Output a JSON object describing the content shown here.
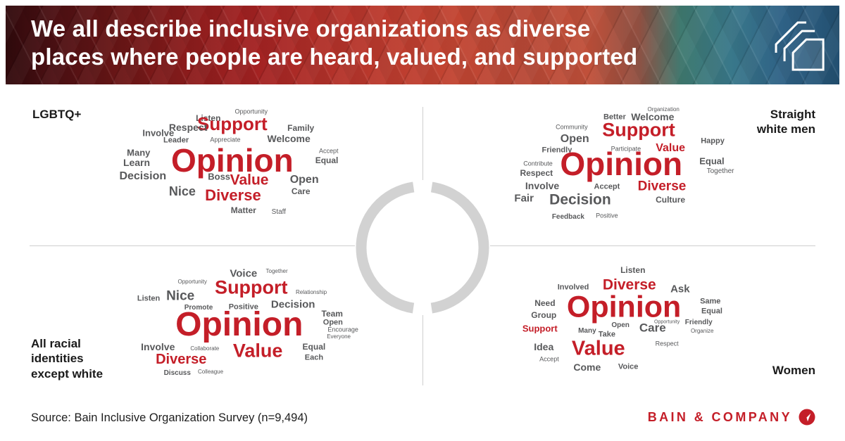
{
  "header": {
    "title_line1": "We all describe inclusive organizations as diverse",
    "title_line2": "places where people are heard, valued, and supported"
  },
  "footer": {
    "source": "Source: Bain Inclusive Organization Survey (n=9,494)",
    "brand": "BAIN & COMPANY"
  },
  "colors": {
    "accent_red": "#c41e28",
    "word_gray": "#58595b",
    "ring_gray": "#d2d2d2",
    "line_gray": "#cfcfcf"
  },
  "chart_data": {
    "type": "wordcloud",
    "title": "We all describe inclusive organizations as diverse places where people are heard, valued, and supported",
    "note": "Four word clouds; word size encodes frequency; red = most frequent terms",
    "quadrants": [
      {
        "label": "LGBTQ+",
        "words": [
          {
            "t": "Opportunity",
            "x": 57.6,
            "y": 9,
            "s": 9,
            "b": 0
          },
          {
            "t": "Listen",
            "x": 46.5,
            "y": 13.3,
            "s": 12
          },
          {
            "t": "Support",
            "x": 52.7,
            "y": 17,
            "s": 26,
            "c": "r"
          },
          {
            "t": "Respect",
            "x": 41.3,
            "y": 19.5,
            "s": 14
          },
          {
            "t": "Family",
            "x": 70.4,
            "y": 20,
            "s": 12
          },
          {
            "t": "Involve",
            "x": 33.6,
            "y": 23.3,
            "s": 13
          },
          {
            "t": "Leader",
            "x": 38.2,
            "y": 28.6,
            "s": 11
          },
          {
            "t": "Appreciate",
            "x": 50.9,
            "y": 28.1,
            "s": 9,
            "b": 0
          },
          {
            "t": "Welcome",
            "x": 67.3,
            "y": 27.1,
            "s": 14
          },
          {
            "t": "Many",
            "x": 28.5,
            "y": 36.7,
            "s": 13
          },
          {
            "t": "Accept",
            "x": 77.6,
            "y": 35.7,
            "s": 9,
            "b": 0
          },
          {
            "t": "Opinion",
            "x": 52.7,
            "y": 42,
            "s": 46,
            "c": "r"
          },
          {
            "t": "Learn",
            "x": 28,
            "y": 43.3,
            "s": 14
          },
          {
            "t": "Equal",
            "x": 77.1,
            "y": 42,
            "s": 12
          },
          {
            "t": "Decision",
            "x": 29.6,
            "y": 52.9,
            "s": 16
          },
          {
            "t": "Boss",
            "x": 49.3,
            "y": 52.9,
            "s": 13
          },
          {
            "t": "Value",
            "x": 57.1,
            "y": 55.2,
            "s": 21,
            "c": "r"
          },
          {
            "t": "Open",
            "x": 71.3,
            "y": 55.2,
            "s": 16
          },
          {
            "t": "Nice",
            "x": 39.8,
            "y": 62.9,
            "s": 18
          },
          {
            "t": "Diverse",
            "x": 52.9,
            "y": 65.7,
            "s": 22,
            "c": "r"
          },
          {
            "t": "Care",
            "x": 70.4,
            "y": 62.9,
            "s": 12
          },
          {
            "t": "Matter",
            "x": 55.6,
            "y": 75.7,
            "s": 12
          },
          {
            "t": "Staff",
            "x": 64.7,
            "y": 77.1,
            "s": 10,
            "b": 0
          }
        ]
      },
      {
        "label": "Straight white men",
        "words": [
          {
            "t": "Organization",
            "x": 60.4,
            "y": 7.6,
            "s": 8,
            "b": 0
          },
          {
            "t": "Better",
            "x": 47.8,
            "y": 12.9,
            "s": 11
          },
          {
            "t": "Welcome",
            "x": 57.6,
            "y": 12.4,
            "s": 14
          },
          {
            "t": "Community",
            "x": 36.7,
            "y": 19.5,
            "s": 9,
            "b": 0
          },
          {
            "t": "Support",
            "x": 54,
            "y": 21.4,
            "s": 27,
            "c": "r"
          },
          {
            "t": "Open",
            "x": 37.5,
            "y": 27.6,
            "s": 16
          },
          {
            "t": "Happy",
            "x": 73.1,
            "y": 29,
            "s": 11
          },
          {
            "t": "Value",
            "x": 62.2,
            "y": 33.8,
            "s": 16,
            "c": "r"
          },
          {
            "t": "Friendly",
            "x": 32.9,
            "y": 35.2,
            "s": 11
          },
          {
            "t": "Participate",
            "x": 50.7,
            "y": 34.3,
            "s": 9,
            "b": 0
          },
          {
            "t": "Opinion",
            "x": 49.5,
            "y": 44.3,
            "s": 46,
            "c": "r"
          },
          {
            "t": "Equal",
            "x": 72.9,
            "y": 42.4,
            "s": 13
          },
          {
            "t": "Contribute",
            "x": 28,
            "y": 44.3,
            "s": 9,
            "b": 0
          },
          {
            "t": "Together",
            "x": 75.1,
            "y": 49.5,
            "s": 10,
            "b": 0
          },
          {
            "t": "Respect",
            "x": 27.6,
            "y": 50.5,
            "s": 12
          },
          {
            "t": "Involve",
            "x": 29.1,
            "y": 59,
            "s": 14
          },
          {
            "t": "Accept",
            "x": 45.8,
            "y": 60,
            "s": 11
          },
          {
            "t": "Diverse",
            "x": 60,
            "y": 59.5,
            "s": 19,
            "c": "r"
          },
          {
            "t": "Fair",
            "x": 24.4,
            "y": 67.6,
            "s": 15
          },
          {
            "t": "Decision",
            "x": 38.9,
            "y": 68.6,
            "s": 21
          },
          {
            "t": "Culture",
            "x": 62.2,
            "y": 68.6,
            "s": 12
          },
          {
            "t": "Feedback",
            "x": 35.8,
            "y": 80.5,
            "s": 10
          },
          {
            "t": "Positive",
            "x": 45.8,
            "y": 79.5,
            "s": 9,
            "b": 0
          }
        ]
      },
      {
        "label": "All racial identities except white",
        "words": [
          {
            "t": "Voice",
            "x": 55.6,
            "y": 18.1,
            "s": 15
          },
          {
            "t": "Together",
            "x": 64.2,
            "y": 16.7,
            "s": 8,
            "b": 0
          },
          {
            "t": "Opportunity",
            "x": 42.4,
            "y": 23.7,
            "s": 8,
            "b": 0
          },
          {
            "t": "Support",
            "x": 57.6,
            "y": 27.4,
            "s": 27,
            "c": "r"
          },
          {
            "t": "Relationship",
            "x": 73.1,
            "y": 30.7,
            "s": 8,
            "b": 0
          },
          {
            "t": "Nice",
            "x": 39.3,
            "y": 33,
            "s": 19
          },
          {
            "t": "Listen",
            "x": 31.1,
            "y": 34.9,
            "s": 11
          },
          {
            "t": "Promote",
            "x": 44,
            "y": 40.9,
            "s": 10
          },
          {
            "t": "Positive",
            "x": 55.6,
            "y": 40.5,
            "s": 11
          },
          {
            "t": "Decision",
            "x": 68.4,
            "y": 38.6,
            "s": 15
          },
          {
            "t": "Team",
            "x": 78.5,
            "y": 44.7,
            "s": 12
          },
          {
            "t": "Opinion",
            "x": 54.5,
            "y": 52.1,
            "s": 48,
            "c": "r"
          },
          {
            "t": "Open",
            "x": 78.7,
            "y": 50.7,
            "s": 11
          },
          {
            "t": "Encourage",
            "x": 81.3,
            "y": 55.3,
            "s": 9,
            "b": 0
          },
          {
            "t": "Everyone",
            "x": 80.2,
            "y": 60,
            "s": 8,
            "b": 0
          },
          {
            "t": "Involve",
            "x": 33.5,
            "y": 66.5,
            "s": 14
          },
          {
            "t": "Collaborate",
            "x": 45.6,
            "y": 67.9,
            "s": 8,
            "b": 0
          },
          {
            "t": "Value",
            "x": 59.3,
            "y": 69.3,
            "s": 27,
            "c": "r"
          },
          {
            "t": "Equal",
            "x": 73.8,
            "y": 66.5,
            "s": 12
          },
          {
            "t": "Diverse",
            "x": 39.5,
            "y": 74.9,
            "s": 20,
            "c": "r"
          },
          {
            "t": "Each",
            "x": 73.8,
            "y": 74,
            "s": 11
          },
          {
            "t": "Discuss",
            "x": 38.5,
            "y": 84.2,
            "s": 10
          },
          {
            "t": "Colleague",
            "x": 47.1,
            "y": 83.3,
            "s": 8,
            "b": 0
          }
        ]
      },
      {
        "label": "Women",
        "words": [
          {
            "t": "Listen",
            "x": 52.5,
            "y": 15.8,
            "s": 12
          },
          {
            "t": "Involved",
            "x": 37.1,
            "y": 27.4,
            "s": 11
          },
          {
            "t": "Diverse",
            "x": 51.6,
            "y": 25.6,
            "s": 21,
            "c": "r"
          },
          {
            "t": "Ask",
            "x": 64.7,
            "y": 28.4,
            "s": 15
          },
          {
            "t": "Same",
            "x": 72.5,
            "y": 36.7,
            "s": 11
          },
          {
            "t": "Need",
            "x": 29.8,
            "y": 37.7,
            "s": 12
          },
          {
            "t": "Opinion",
            "x": 50.2,
            "y": 40.5,
            "s": 43,
            "c": "r"
          },
          {
            "t": "Equal",
            "x": 72.9,
            "y": 43.3,
            "s": 11
          },
          {
            "t": "Group",
            "x": 29.5,
            "y": 45.6,
            "s": 12
          },
          {
            "t": "Open",
            "x": 49.3,
            "y": 52.6,
            "s": 10
          },
          {
            "t": "Opportunity",
            "x": 61.3,
            "y": 50.2,
            "s": 7,
            "b": 0
          },
          {
            "t": "Care",
            "x": 57.6,
            "y": 54,
            "s": 17
          },
          {
            "t": "Friendly",
            "x": 69.5,
            "y": 50.7,
            "s": 10
          },
          {
            "t": "Support",
            "x": 28.5,
            "y": 54.4,
            "s": 13,
            "c": "r"
          },
          {
            "t": "Many",
            "x": 40.7,
            "y": 56.3,
            "s": 10
          },
          {
            "t": "Take",
            "x": 45.8,
            "y": 58.6,
            "s": 11
          },
          {
            "t": "Organize",
            "x": 70.4,
            "y": 56.3,
            "s": 8,
            "b": 0
          },
          {
            "t": "Idea",
            "x": 29.5,
            "y": 66.5,
            "s": 14
          },
          {
            "t": "Value",
            "x": 43.6,
            "y": 67.9,
            "s": 29,
            "c": "r"
          },
          {
            "t": "Respect",
            "x": 61.3,
            "y": 64.7,
            "s": 9,
            "b": 0
          },
          {
            "t": "Accept",
            "x": 30.9,
            "y": 74.9,
            "s": 9,
            "b": 0
          },
          {
            "t": "Come",
            "x": 40.7,
            "y": 80,
            "s": 14
          },
          {
            "t": "Voice",
            "x": 51.3,
            "y": 80,
            "s": 11
          }
        ]
      }
    ]
  }
}
